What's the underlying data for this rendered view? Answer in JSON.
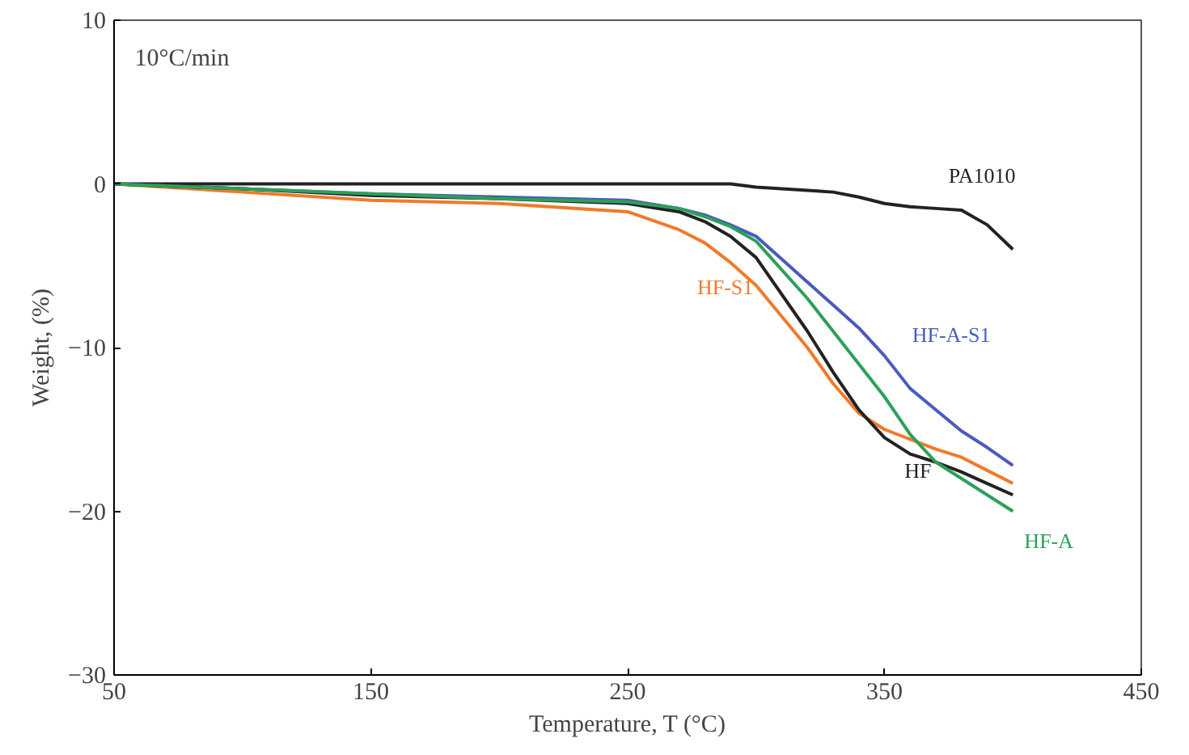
{
  "chart_data": {
    "type": "line",
    "xlabel": "Temperature, T (°C)",
    "ylabel": "Weight, (%)",
    "annotations": [
      "10°C/min"
    ],
    "x": [
      50,
      100,
      150,
      200,
      250,
      270,
      280,
      290,
      300,
      320,
      330,
      340,
      350,
      360,
      370,
      380,
      390,
      400
    ],
    "series": [
      {
        "name": "PA1010",
        "color": "#222222",
        "values": [
          0,
          0,
          0,
          0,
          0,
          0,
          0,
          0,
          -0.2,
          -0.4,
          -0.5,
          -0.8,
          -1.2,
          -1.4,
          -1.5,
          -1.6,
          -2.5,
          -4.0
        ]
      },
      {
        "name": "HF-S1",
        "color": "#f07a2a",
        "values": [
          0,
          -0.5,
          -1.0,
          -1.2,
          -1.7,
          -2.8,
          -3.6,
          -4.8,
          -6.2,
          -10,
          -12.2,
          -14,
          -15,
          -15.6,
          -16.2,
          -16.7,
          -17.5,
          -18.3
        ]
      },
      {
        "name": "HF-A-S1",
        "color": "#4a5bbf",
        "values": [
          0,
          -0.3,
          -0.6,
          -0.8,
          -1.0,
          -1.5,
          -1.9,
          -2.5,
          -3.2,
          -6,
          -7.4,
          -8.8,
          -10.5,
          -12.5,
          -13.8,
          -15.1,
          -16.1,
          -17.2
        ]
      },
      {
        "name": "HF",
        "color": "#222222",
        "values": [
          0,
          -0.3,
          -0.7,
          -0.9,
          -1.2,
          -1.7,
          -2.3,
          -3.2,
          -4.5,
          -9,
          -11.5,
          -13.8,
          -15.5,
          -16.5,
          -17,
          -17.6,
          -18.3,
          -19
        ]
      },
      {
        "name": "HF-A",
        "color": "#2ca05a",
        "values": [
          0,
          -0.3,
          -0.6,
          -0.9,
          -1.1,
          -1.5,
          -2.0,
          -2.6,
          -3.5,
          -7,
          -9,
          -11,
          -13,
          -15.3,
          -17,
          -18,
          -19,
          -20
        ]
      }
    ],
    "xlim": [
      50,
      450
    ],
    "ylim": [
      -30,
      10
    ],
    "xticks": [
      50,
      150,
      250,
      350,
      450
    ],
    "yticks": [
      -30,
      -20,
      -10,
      0,
      10
    ],
    "grid": false,
    "marker": "none",
    "line_style": "solid"
  }
}
